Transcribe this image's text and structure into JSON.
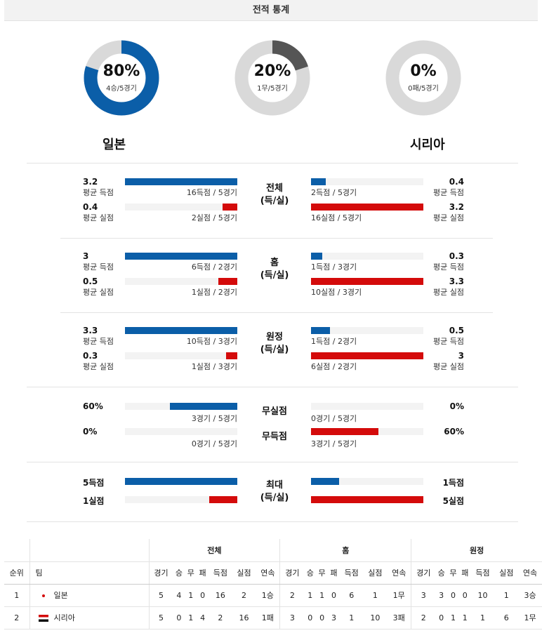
{
  "title": "전적 통계",
  "donuts": [
    {
      "pct": "80%",
      "sub": "4승/5경기",
      "fraction": 0.8,
      "color": "#0b5ea8"
    },
    {
      "pct": "20%",
      "sub": "1무/5경기",
      "fraction": 0.2,
      "color": "#555555"
    },
    {
      "pct": "0%",
      "sub": "0패/5경기",
      "fraction": 0.0,
      "color": "#d9d9d9"
    }
  ],
  "teams": {
    "home": "일본",
    "away": "시리아"
  },
  "sections": {
    "overall": {
      "center": [
        "전체",
        "(득/실)"
      ],
      "home_scored": {
        "num": "3.2",
        "label": "평균 득점",
        "cap": "16득점 / 5경기",
        "fraction": 1.0
      },
      "home_conceded": {
        "num": "0.4",
        "label": "평균 실점",
        "cap": "2실점 / 5경기",
        "fraction": 0.13
      },
      "away_scored": {
        "num": "0.4",
        "label": "평균 득점",
        "cap": "2득점 / 5경기",
        "fraction": 0.13
      },
      "away_conceded": {
        "num": "3.2",
        "label": "평균 실점",
        "cap": "16실점 / 5경기",
        "fraction": 1.0
      }
    },
    "home": {
      "center": [
        "홈",
        "(득/실)"
      ],
      "home_scored": {
        "num": "3",
        "label": "평균 득점",
        "cap": "6득점 / 2경기",
        "fraction": 1.0
      },
      "home_conceded": {
        "num": "0.5",
        "label": "평균 실점",
        "cap": "1실점 / 2경기",
        "fraction": 0.17
      },
      "away_scored": {
        "num": "0.3",
        "label": "평균 득점",
        "cap": "1득점 / 3경기",
        "fraction": 0.1
      },
      "away_conceded": {
        "num": "3.3",
        "label": "평균 실점",
        "cap": "10실점 / 3경기",
        "fraction": 1.0
      }
    },
    "away": {
      "center": [
        "원정",
        "(득/실)"
      ],
      "home_scored": {
        "num": "3.3",
        "label": "평균 득점",
        "cap": "10득점 / 3경기",
        "fraction": 1.0
      },
      "home_conceded": {
        "num": "0.3",
        "label": "평균 실점",
        "cap": "1실점 / 3경기",
        "fraction": 0.1
      },
      "away_scored": {
        "num": "0.5",
        "label": "평균 득점",
        "cap": "1득점 / 2경기",
        "fraction": 0.17
      },
      "away_conceded": {
        "num": "3",
        "label": "평균 실점",
        "cap": "6실점 / 2경기",
        "fraction": 1.0
      }
    },
    "clean": {
      "center_top": "무실점",
      "center_bottom": "무득점",
      "home_clean": {
        "num": "60%",
        "cap": "3경기 / 5경기",
        "fraction": 0.6
      },
      "home_nogoal": {
        "num": "0%",
        "cap": "0경기 / 5경기",
        "fraction": 0.0
      },
      "away_clean": {
        "num": "0%",
        "cap": "0경기 / 5경기",
        "fraction": 0.0
      },
      "away_nogoal": {
        "num": "60%",
        "cap": "3경기 / 5경기",
        "fraction": 0.6
      }
    },
    "max": {
      "center": [
        "최대",
        "(득/실)"
      ],
      "home_scored": {
        "num": "5득점",
        "fraction": 1.0
      },
      "home_conceded": {
        "num": "1실점",
        "fraction": 0.25
      },
      "away_scored": {
        "num": "1득점",
        "fraction": 0.25
      },
      "away_conceded": {
        "num": "5실점",
        "fraction": 1.0
      }
    }
  },
  "standings": {
    "groups": [
      "전체",
      "홈",
      "원정"
    ],
    "rank_header": "순위",
    "team_header": "팀",
    "cols": [
      "경기",
      "승",
      "무",
      "패",
      "득점",
      "실점",
      "연속"
    ],
    "rows": [
      {
        "rank": "1",
        "team": "일본",
        "flag": "japan-flag",
        "overall": [
          "5",
          "4",
          "1",
          "0",
          "16",
          "2",
          "1승"
        ],
        "home": [
          "2",
          "1",
          "1",
          "0",
          "6",
          "1",
          "1무"
        ],
        "away": [
          "3",
          "3",
          "0",
          "0",
          "10",
          "1",
          "3승"
        ]
      },
      {
        "rank": "2",
        "team": "시리아",
        "flag": "syria-flag",
        "overall": [
          "5",
          "0",
          "1",
          "4",
          "2",
          "16",
          "1패"
        ],
        "home": [
          "3",
          "0",
          "0",
          "3",
          "1",
          "10",
          "3패"
        ],
        "away": [
          "2",
          "0",
          "1",
          "1",
          "1",
          "6",
          "1무"
        ]
      }
    ]
  }
}
